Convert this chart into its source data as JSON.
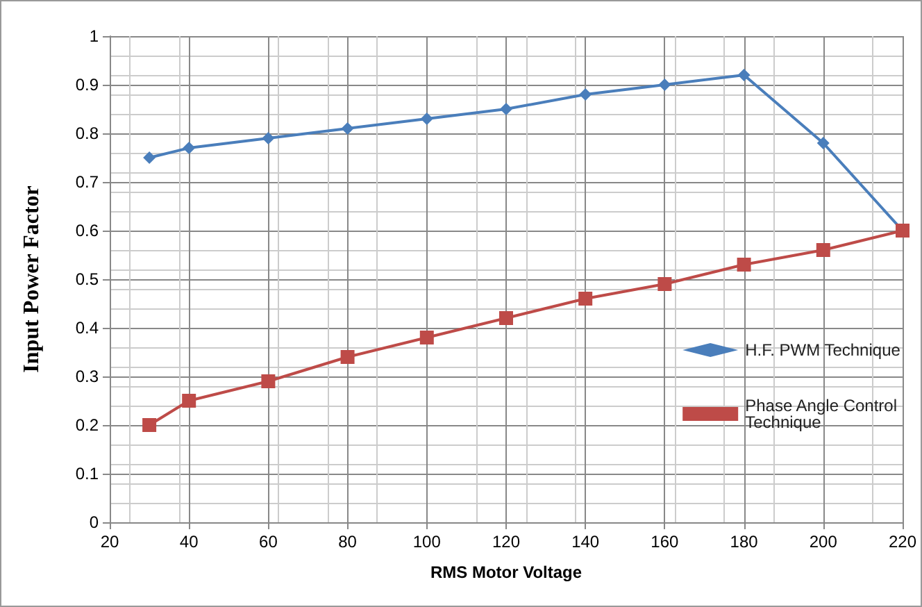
{
  "chart_data": {
    "type": "line",
    "xlabel": "RMS Motor Voltage",
    "ylabel": "Input Power Factor",
    "x": [
      30,
      40,
      60,
      80,
      100,
      120,
      140,
      160,
      180,
      200,
      220
    ],
    "series": [
      {
        "name": "H.F. PWM Technique",
        "color": "#4a7ebb",
        "marker": "diamond",
        "values": [
          0.75,
          0.77,
          0.79,
          0.81,
          0.83,
          0.85,
          0.88,
          0.9,
          0.92,
          0.78,
          0.6
        ]
      },
      {
        "name": "Phase Angle Control Technique",
        "color": "#be4b48",
        "marker": "square",
        "values": [
          0.2,
          0.25,
          0.29,
          0.34,
          0.38,
          0.42,
          0.46,
          0.49,
          0.53,
          0.56,
          0.6
        ]
      }
    ],
    "xlim": [
      20,
      220
    ],
    "xticks": [
      20,
      40,
      60,
      80,
      100,
      120,
      140,
      160,
      180,
      200,
      220
    ],
    "ylim": [
      0,
      1
    ],
    "yticks": [
      0,
      0.1,
      0.2,
      0.3,
      0.4,
      0.5,
      0.6,
      0.7,
      0.8,
      0.9,
      1
    ],
    "grid": true,
    "legend": "right",
    "line_style": "solid"
  }
}
